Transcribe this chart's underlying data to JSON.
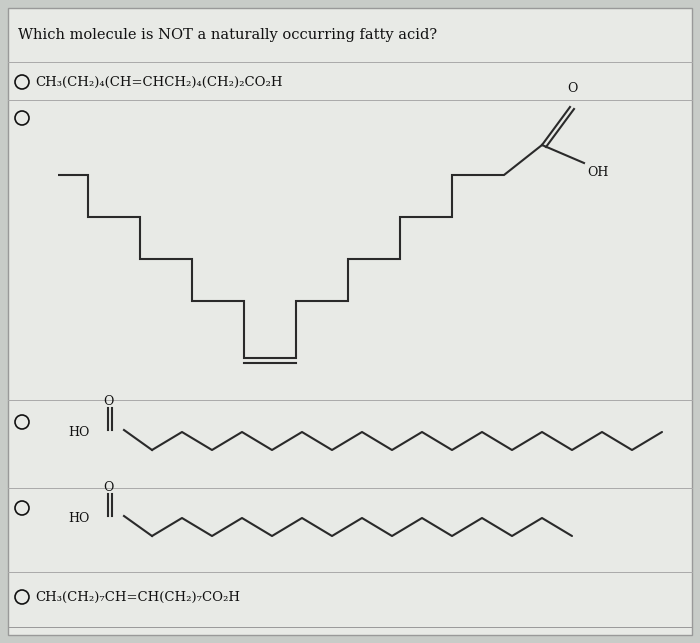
{
  "title": "Which molecule is NOT a naturally occurring fatty acid?",
  "title_fontsize": 10.5,
  "bg_color": "#c8ccc8",
  "card_color": "#e8eae6",
  "option1_text": "CH₃(CH₂)₄(CH=CHCH₂)₄(CH₂)₂CO₂H",
  "option5_text": "CH₃(CH₂)₇CH=CH(CH₂)₇CO₂H",
  "line_color": "#2a2a2a",
  "text_color": "#111111",
  "sep_color": "#aaaaaa"
}
